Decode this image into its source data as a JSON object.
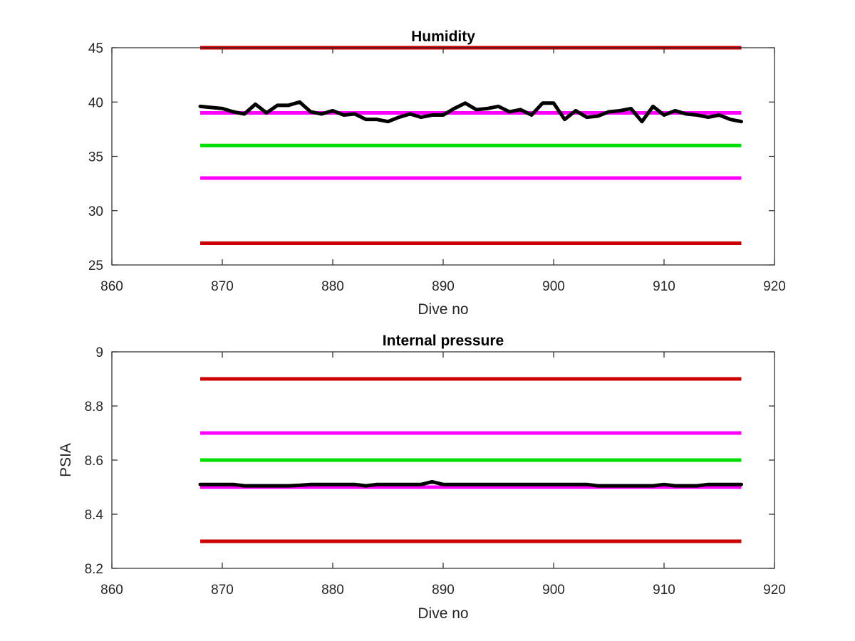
{
  "chart_data": [
    {
      "type": "line",
      "title": "Humidity",
      "xlabel": "Dive no",
      "ylabel": "",
      "xlim": [
        860,
        920
      ],
      "ylim": [
        25,
        45
      ],
      "xticks": [
        860,
        870,
        880,
        890,
        900,
        910,
        920
      ],
      "yticks": [
        25,
        30,
        35,
        40,
        45
      ],
      "grid": false,
      "legend": "none",
      "series": [
        {
          "color": "#cc0000",
          "x": [
            868,
            917
          ],
          "y": [
            45,
            45
          ]
        },
        {
          "color": "#ff00ff",
          "x": [
            868,
            917
          ],
          "y": [
            39,
            39
          ]
        },
        {
          "color": "#00dd00",
          "x": [
            868,
            917
          ],
          "y": [
            36,
            36
          ]
        },
        {
          "color": "#ff00ff",
          "x": [
            868,
            917
          ],
          "y": [
            33,
            33
          ]
        },
        {
          "color": "#cc0000",
          "x": [
            868,
            917
          ],
          "y": [
            27,
            27
          ]
        },
        {
          "color": "#000000",
          "x": [
            868,
            869,
            870,
            871,
            872,
            873,
            874,
            875,
            876,
            877,
            878,
            879,
            880,
            881,
            882,
            883,
            884,
            885,
            886,
            887,
            888,
            889,
            890,
            891,
            892,
            893,
            894,
            895,
            896,
            897,
            898,
            899,
            900,
            901,
            902,
            903,
            904,
            905,
            906,
            907,
            908,
            909,
            910,
            911,
            912,
            913,
            914,
            915,
            916,
            917
          ],
          "y": [
            39.6,
            39.5,
            39.4,
            39.1,
            38.9,
            39.8,
            39.0,
            39.7,
            39.7,
            40.0,
            39.1,
            38.9,
            39.2,
            38.8,
            38.9,
            38.4,
            38.4,
            38.2,
            38.6,
            38.9,
            38.6,
            38.8,
            38.8,
            39.4,
            39.9,
            39.3,
            39.4,
            39.6,
            39.1,
            39.3,
            38.8,
            39.9,
            39.9,
            38.4,
            39.2,
            38.6,
            38.7,
            39.1,
            39.2,
            39.4,
            38.2,
            39.6,
            38.8,
            39.2,
            38.9,
            38.8,
            38.6,
            38.8,
            38.4,
            38.2
          ]
        }
      ]
    },
    {
      "type": "line",
      "title": "Internal pressure",
      "xlabel": "Dive no",
      "ylabel": "PSIA",
      "xlim": [
        860,
        920
      ],
      "ylim": [
        8.2,
        9
      ],
      "xticks": [
        860,
        870,
        880,
        890,
        900,
        910,
        920
      ],
      "yticks": [
        8.2,
        8.4,
        8.6,
        8.8,
        9
      ],
      "grid": false,
      "legend": "none",
      "series": [
        {
          "color": "#cc0000",
          "x": [
            868,
            917
          ],
          "y": [
            8.9,
            8.9
          ]
        },
        {
          "color": "#ff00ff",
          "x": [
            868,
            917
          ],
          "y": [
            8.7,
            8.7
          ]
        },
        {
          "color": "#00dd00",
          "x": [
            868,
            917
          ],
          "y": [
            8.6,
            8.6
          ]
        },
        {
          "color": "#ff00ff",
          "x": [
            868,
            917
          ],
          "y": [
            8.5,
            8.5
          ]
        },
        {
          "color": "#cc0000",
          "x": [
            868,
            917
          ],
          "y": [
            8.3,
            8.3
          ]
        },
        {
          "color": "#000000",
          "x": [
            868,
            869,
            870,
            871,
            872,
            873,
            874,
            875,
            876,
            877,
            878,
            879,
            880,
            881,
            882,
            883,
            884,
            885,
            886,
            887,
            888,
            889,
            890,
            891,
            892,
            893,
            894,
            895,
            896,
            897,
            898,
            899,
            900,
            901,
            902,
            903,
            904,
            905,
            906,
            907,
            908,
            909,
            910,
            911,
            912,
            913,
            914,
            915,
            916,
            917
          ],
          "y": [
            8.51,
            8.51,
            8.51,
            8.51,
            8.505,
            8.505,
            8.505,
            8.505,
            8.505,
            8.507,
            8.51,
            8.51,
            8.51,
            8.51,
            8.51,
            8.505,
            8.51,
            8.51,
            8.51,
            8.51,
            8.51,
            8.52,
            8.51,
            8.51,
            8.51,
            8.51,
            8.51,
            8.51,
            8.51,
            8.51,
            8.51,
            8.51,
            8.51,
            8.51,
            8.51,
            8.51,
            8.505,
            8.505,
            8.505,
            8.505,
            8.505,
            8.505,
            8.51,
            8.505,
            8.505,
            8.505,
            8.51,
            8.51,
            8.51,
            8.51
          ]
        }
      ]
    }
  ]
}
